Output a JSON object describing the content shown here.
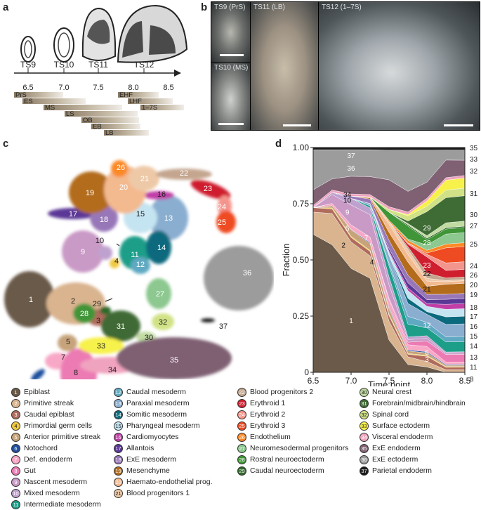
{
  "panels": {
    "a": "a",
    "b": "b",
    "c": "c",
    "d": "d"
  },
  "timeline": {
    "stages": [
      "TS9",
      "TS10",
      "TS11",
      "TS12"
    ],
    "days": [
      "6.5",
      "7.0",
      "7.5",
      "8.0",
      "8.5"
    ],
    "bars": [
      "PrS",
      "ES",
      "MS",
      "LS",
      "OB",
      "EB",
      "LB",
      "EHF",
      "LHF",
      "1–7S"
    ]
  },
  "photos": {
    "ts9": "TS9 (PrS)",
    "ts10": "TS10 (MS)",
    "ts11": "TS11 (LB)",
    "ts12": "TS12 (1–7S)"
  },
  "umap_labels": [
    "1",
    "2",
    "3",
    "4",
    "5",
    "6",
    "7",
    "8",
    "9",
    "10",
    "11",
    "12",
    "13",
    "14",
    "15",
    "16",
    "17",
    "18",
    "19",
    "20",
    "21",
    "22",
    "23",
    "24",
    "25",
    "26",
    "27",
    "28",
    "29",
    "30",
    "31",
    "32",
    "33",
    "34",
    "35",
    "36",
    "37"
  ],
  "chart_data": {
    "type": "area",
    "stacked": true,
    "xlabel": "Time point",
    "ylabel": "Fraction",
    "x": [
      6.5,
      6.75,
      7.0,
      7.25,
      7.5,
      7.75,
      8.0,
      8.25,
      8.5
    ],
    "xticks": [
      "6.5",
      "7.0",
      "7.5",
      "8.0",
      "8.5"
    ],
    "yticks": [
      "0",
      "0.25",
      "0.50",
      "0.75",
      "1.00"
    ],
    "ylim": [
      0,
      1
    ],
    "series": [
      {
        "name": "1",
        "color": "#6b5a49",
        "values": [
          0.62,
          0.57,
          0.47,
          0.42,
          0.12,
          0.03,
          0.02,
          0.0,
          0.0
        ]
      },
      {
        "name": "2",
        "color": "#d9b48f",
        "values": [
          0.1,
          0.14,
          0.12,
          0.1,
          0.07,
          0.03,
          0.02,
          0.01,
          0.01
        ]
      },
      {
        "name": "3",
        "color": "#b06b5d",
        "values": [
          0.02,
          0.02,
          0.02,
          0.02,
          0.02,
          0.01,
          0.02,
          0.01,
          0.01
        ]
      },
      {
        "name": "4",
        "color": "#f0c940",
        "values": [
          0.0,
          0.005,
          0.005,
          0.005,
          0.005,
          0.003,
          0.003,
          0.003,
          0.003
        ]
      },
      {
        "name": "5",
        "color": "#c6a37a",
        "values": [
          0.0,
          0.01,
          0.03,
          0.03,
          0.02,
          0.01,
          0.01,
          0.005,
          0.005
        ]
      },
      {
        "name": "6",
        "color": "#1d4f9e",
        "values": [
          0.0,
          0.0,
          0.002,
          0.004,
          0.005,
          0.004,
          0.004,
          0.003,
          0.003
        ]
      },
      {
        "name": "7",
        "color": "#f8a8c6",
        "values": [
          0.0,
          0.01,
          0.02,
          0.025,
          0.03,
          0.02,
          0.02,
          0.01,
          0.01
        ]
      },
      {
        "name": "8",
        "color": "#ec7ab3",
        "values": [
          0.0,
          0.0,
          0.0,
          0.0,
          0.005,
          0.01,
          0.02,
          0.03,
          0.03
        ]
      },
      {
        "name": "9",
        "color": "#c99ac6",
        "values": [
          0.0,
          0.04,
          0.09,
          0.1,
          0.05,
          0.01,
          0.01,
          0.005,
          0.005
        ]
      },
      {
        "name": "10",
        "color": "#bfa1cf",
        "values": [
          0.0,
          0.01,
          0.03,
          0.03,
          0.03,
          0.01,
          0.01,
          0.005,
          0.005
        ]
      },
      {
        "name": "11",
        "color": "#1c9e89",
        "values": [
          0.0,
          0.0,
          0.0,
          0.01,
          0.04,
          0.05,
          0.03,
          0.04,
          0.04
        ]
      },
      {
        "name": "12",
        "color": "#5fa9c3",
        "values": [
          0.0,
          0.0,
          0.0,
          0.0,
          0.01,
          0.03,
          0.02,
          0.02,
          0.02
        ]
      },
      {
        "name": "13",
        "color": "#8aaed0",
        "values": [
          0.0,
          0.0,
          0.0,
          0.01,
          0.03,
          0.05,
          0.03,
          0.05,
          0.05
        ]
      },
      {
        "name": "14",
        "color": "#0c6a7e",
        "values": [
          0.0,
          0.0,
          0.0,
          0.0,
          0.0,
          0.02,
          0.01,
          0.03,
          0.03
        ]
      },
      {
        "name": "15",
        "color": "#c5e4f1",
        "values": [
          0.0,
          0.0,
          0.0,
          0.0,
          0.01,
          0.03,
          0.02,
          0.03,
          0.03
        ]
      },
      {
        "name": "16",
        "color": "#c13ea7",
        "values": [
          0.0,
          0.0,
          0.0,
          0.0,
          0.005,
          0.01,
          0.01,
          0.02,
          0.02
        ]
      },
      {
        "name": "17",
        "color": "#5b3796",
        "values": [
          0.0,
          0.0,
          0.0,
          0.0,
          0.01,
          0.02,
          0.015,
          0.02,
          0.02
        ]
      },
      {
        "name": "18",
        "color": "#9877b9",
        "values": [
          0.0,
          0.0,
          0.01,
          0.02,
          0.03,
          0.03,
          0.02,
          0.02,
          0.02
        ]
      },
      {
        "name": "19",
        "color": "#b36c1c",
        "values": [
          0.0,
          0.0,
          0.0,
          0.005,
          0.03,
          0.05,
          0.03,
          0.04,
          0.04
        ]
      },
      {
        "name": "20",
        "color": "#f3b98f",
        "values": [
          0.0,
          0.0,
          0.0,
          0.005,
          0.03,
          0.03,
          0.02,
          0.01,
          0.01
        ]
      },
      {
        "name": "21",
        "color": "#eec9a7",
        "values": [
          0.0,
          0.0,
          0.0,
          0.0,
          0.01,
          0.02,
          0.01,
          0.005,
          0.005
        ]
      },
      {
        "name": "22",
        "color": "#c4a68f",
        "values": [
          0.0,
          0.0,
          0.0,
          0.0,
          0.0,
          0.01,
          0.02,
          0.01,
          0.01
        ]
      },
      {
        "name": "23",
        "color": "#cf1f2f",
        "values": [
          0.0,
          0.0,
          0.0,
          0.0,
          0.0,
          0.01,
          0.06,
          0.03,
          0.03
        ]
      },
      {
        "name": "24",
        "color": "#f4958d",
        "values": [
          0.0,
          0.0,
          0.0,
          0.0,
          0.0,
          0.005,
          0.01,
          0.03,
          0.03
        ]
      },
      {
        "name": "25",
        "color": "#ef4b22",
        "values": [
          0.0,
          0.0,
          0.0,
          0.0,
          0.0,
          0.0,
          0.005,
          0.06,
          0.06
        ]
      },
      {
        "name": "26",
        "color": "#fb8925",
        "values": [
          0.0,
          0.0,
          0.0,
          0.0,
          0.005,
          0.01,
          0.01,
          0.015,
          0.015
        ]
      },
      {
        "name": "27",
        "color": "#8cc88f",
        "values": [
          0.0,
          0.0,
          0.0,
          0.0,
          0.0,
          0.005,
          0.02,
          0.04,
          0.04
        ]
      },
      {
        "name": "28",
        "color": "#3f9537",
        "values": [
          0.0,
          0.0,
          0.0,
          0.0,
          0.03,
          0.05,
          0.02,
          0.02,
          0.02
        ]
      },
      {
        "name": "29",
        "color": "#2f6a2a",
        "values": [
          0.0,
          0.0,
          0.0,
          0.0,
          0.0,
          0.005,
          0.005,
          0.005,
          0.005
        ]
      },
      {
        "name": "30",
        "color": "#c1dba2",
        "values": [
          0.0,
          0.0,
          0.0,
          0.0,
          0.0,
          0.005,
          0.01,
          0.02,
          0.02
        ]
      },
      {
        "name": "31",
        "color": "#3f6b34",
        "values": [
          0.0,
          0.0,
          0.0,
          0.0,
          0.0,
          0.01,
          0.09,
          0.1,
          0.1
        ]
      },
      {
        "name": "32",
        "color": "#d0e285",
        "values": [
          0.0,
          0.0,
          0.0,
          0.0,
          0.01,
          0.02,
          0.02,
          0.03,
          0.03
        ]
      },
      {
        "name": "33",
        "color": "#f7f14c",
        "values": [
          0.0,
          0.0,
          0.0,
          0.0,
          0.0,
          0.005,
          0.02,
          0.04,
          0.04
        ]
      },
      {
        "name": "34",
        "color": "#f0a3be",
        "values": [
          0.01,
          0.01,
          0.01,
          0.01,
          0.01,
          0.01,
          0.01,
          0.01,
          0.01
        ]
      },
      {
        "name": "35",
        "color": "#7f6173",
        "values": [
          0.07,
          0.05,
          0.08,
          0.08,
          0.1,
          0.08,
          0.06,
          0.07,
          0.06
        ]
      },
      {
        "name": "36",
        "color": "#9c9c9c",
        "values": [
          0.18,
          0.13,
          0.12,
          0.12,
          0.11,
          0.16,
          0.12,
          0.04,
          0.04
        ]
      },
      {
        "name": "37",
        "color": "#1a1a1a",
        "values": [
          0.01,
          0.01,
          0.01,
          0.01,
          0.01,
          0.01,
          0.01,
          0.01,
          0.01
        ]
      }
    ],
    "annotations": [
      "37",
      "36",
      "34",
      "10",
      "9",
      "7",
      "5",
      "2",
      "4",
      "1",
      "29",
      "28",
      "23",
      "22",
      "21",
      "12",
      "6",
      "3"
    ]
  },
  "legend": [
    {
      "n": "1",
      "label": "Epiblast",
      "color": "#6b5a49"
    },
    {
      "n": "2",
      "label": "Primitive streak",
      "color": "#d9b48f"
    },
    {
      "n": "3",
      "label": "Caudal epiblast",
      "color": "#b06b5d"
    },
    {
      "n": "4",
      "label": "Primordial germ cells",
      "color": "#f0c940"
    },
    {
      "n": "5",
      "label": "Anterior primitive streak",
      "color": "#c6a37a"
    },
    {
      "n": "6",
      "label": "Notochord",
      "color": "#1d4f9e"
    },
    {
      "n": "7",
      "label": "Def. endoderm",
      "color": "#f8a8c6"
    },
    {
      "n": "8",
      "label": "Gut",
      "color": "#ec7ab3"
    },
    {
      "n": "9",
      "label": "Nascent mesoderm",
      "color": "#c99ac6"
    },
    {
      "n": "10",
      "label": "Mixed mesoderm",
      "color": "#bfa1cf"
    },
    {
      "n": "11",
      "label": "Intermediate mesoderm",
      "color": "#1c9e89"
    },
    {
      "n": "12",
      "label": "Caudal mesoderm",
      "color": "#5fa9c3"
    },
    {
      "n": "13",
      "label": "Paraxial mesoderm",
      "color": "#8aaed0"
    },
    {
      "n": "14",
      "label": "Somitic mesoderm",
      "color": "#0c6a7e"
    },
    {
      "n": "15",
      "label": "Pharyngeal mesoderm",
      "color": "#c5e4f1"
    },
    {
      "n": "16",
      "label": "Cardiomyocytes",
      "color": "#c13ea7"
    },
    {
      "n": "17",
      "label": "Allantois",
      "color": "#5b3796"
    },
    {
      "n": "18",
      "label": "ExE mesoderm",
      "color": "#9877b9"
    },
    {
      "n": "19",
      "label": "Mesenchyme",
      "color": "#b36c1c"
    },
    {
      "n": "20",
      "label": "Haemato-endothelial prog.",
      "color": "#f3b98f"
    },
    {
      "n": "21",
      "label": "Blood progenitors 1",
      "color": "#eec9a7"
    },
    {
      "n": "22",
      "label": "Blood progenitors 2",
      "color": "#c4a68f"
    },
    {
      "n": "23",
      "label": "Erythroid 1",
      "color": "#cf1f2f"
    },
    {
      "n": "24",
      "label": "Erythroid 2",
      "color": "#f4958d"
    },
    {
      "n": "25",
      "label": "Erythroid 3",
      "color": "#ef4b22"
    },
    {
      "n": "26",
      "label": "Endothelium",
      "color": "#fb8925"
    },
    {
      "n": "27",
      "label": "Neuromesodermal progenitors",
      "color": "#8cc88f"
    },
    {
      "n": "28",
      "label": "Rostral neuroectoderm",
      "color": "#3f9537"
    },
    {
      "n": "29",
      "label": "Caudal neuroectoderm",
      "color": "#2f6a2a"
    },
    {
      "n": "30",
      "label": "Neural crest",
      "color": "#c1dba2"
    },
    {
      "n": "31",
      "label": "Forebrain/midbrain/hindbrain",
      "color": "#3f6b34"
    },
    {
      "n": "32",
      "label": "Spinal cord",
      "color": "#d0e285"
    },
    {
      "n": "33",
      "label": "Surface ectoderm",
      "color": "#f7f14c"
    },
    {
      "n": "34",
      "label": "Visceral endoderm",
      "color": "#f0a3be"
    },
    {
      "n": "35",
      "label": "ExE endoderm",
      "color": "#7f6173"
    },
    {
      "n": "36",
      "label": "ExE ectoderm",
      "color": "#9c9c9c"
    },
    {
      "n": "37",
      "label": "Parietal endoderm",
      "color": "#1a1a1a"
    }
  ]
}
